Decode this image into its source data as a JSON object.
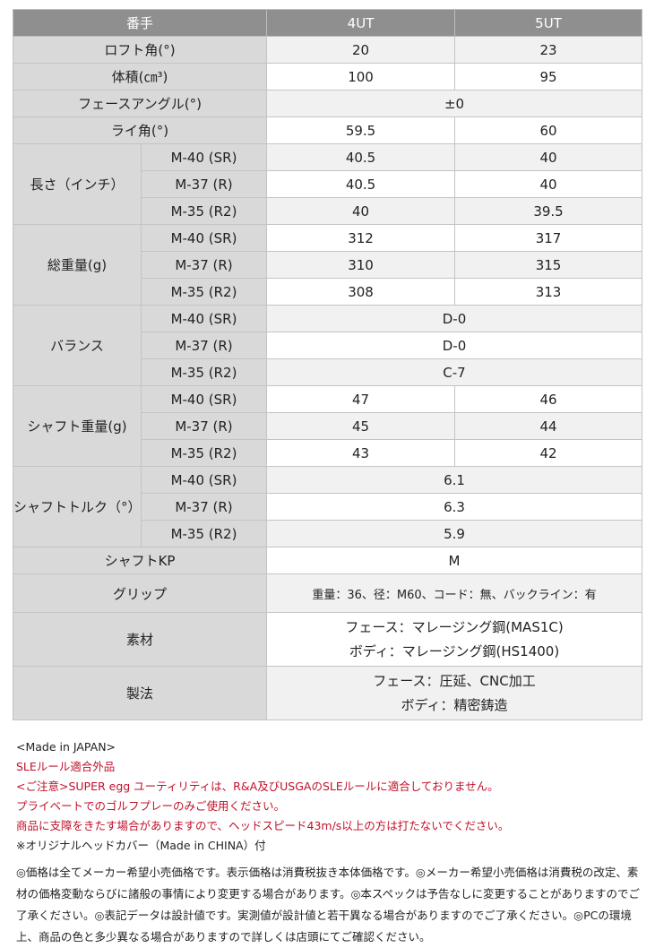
{
  "table": {
    "header": [
      "番手",
      "4UT",
      "5UT"
    ],
    "rows": [
      {
        "label": "ロフト角(°)",
        "values": [
          "20",
          "23"
        ]
      },
      {
        "label": "体積(㎝³)",
        "values": [
          "100",
          "95"
        ]
      },
      {
        "label": "フェースアングル(°)",
        "values": [
          "±0"
        ]
      },
      {
        "label": "ライ角(°)",
        "values": [
          "59.5",
          "60"
        ]
      },
      {
        "label": "長さ（インチ）",
        "sub": [
          {
            "name": "M-40 (SR)",
            "values": [
              "40.5",
              "40"
            ]
          },
          {
            "name": "M-37 (R)",
            "values": [
              "40.5",
              "40"
            ]
          },
          {
            "name": "M-35 (R2)",
            "values": [
              "40",
              "39.5"
            ]
          }
        ]
      },
      {
        "label": "総重量(g)",
        "sub": [
          {
            "name": "M-40 (SR)",
            "values": [
              "312",
              "317"
            ]
          },
          {
            "name": "M-37 (R)",
            "values": [
              "310",
              "315"
            ]
          },
          {
            "name": "M-35 (R2)",
            "values": [
              "308",
              "313"
            ]
          }
        ]
      },
      {
        "label": "バランス",
        "sub": [
          {
            "name": "M-40 (SR)",
            "values": [
              "D-0"
            ]
          },
          {
            "name": "M-37 (R)",
            "values": [
              "D-0"
            ]
          },
          {
            "name": "M-35 (R2)",
            "values": [
              "C-7"
            ]
          }
        ]
      },
      {
        "label": "シャフト重量(g)",
        "sub": [
          {
            "name": "M-40 (SR)",
            "values": [
              "47",
              "46"
            ]
          },
          {
            "name": "M-37 (R)",
            "values": [
              "45",
              "44"
            ]
          },
          {
            "name": "M-35 (R2)",
            "values": [
              "43",
              "42"
            ]
          }
        ]
      },
      {
        "label": "シャフトトルク（°）",
        "sub": [
          {
            "name": "M-40 (SR)",
            "values": [
              "6.1"
            ]
          },
          {
            "name": "M-37 (R)",
            "values": [
              "6.3"
            ]
          },
          {
            "name": "M-35 (R2)",
            "values": [
              "5.9"
            ]
          }
        ]
      },
      {
        "label": "シャフトKP",
        "values": [
          "M"
        ]
      },
      {
        "label": "グリップ",
        "values": [
          "重量：36、径：M60、コード：無、バックライン：有"
        ]
      },
      {
        "label": "素材",
        "lines": [
          "フェース：マレージング鋼(MAS1C)",
          "ボディ：マレージング鋼(HS1400)"
        ]
      },
      {
        "label": "製法",
        "lines": [
          "フェース：圧延、CNC加工",
          "ボディ：精密鋳造"
        ]
      }
    ]
  },
  "notes": [
    {
      "text": "<Made in JAPAN>",
      "color": "#222222"
    },
    {
      "text": "SLEルール適合外品",
      "color": "#c0102a"
    },
    {
      "text": "<ご注意>SUPER egg ユーティリティは、R&A及びUSGAのSLEルールに適合しておりません。",
      "color": "#c0102a"
    },
    {
      "text": "プライベートでのゴルフプレーのみご使用ください。",
      "color": "#c0102a"
    },
    {
      "text": "商品に支障をきたす場合がありますので、ヘッドスピード43m/s以上の方は打たないでください。",
      "color": "#c0102a"
    },
    {
      "text": "※オリジナルヘッドカバー（Made in CHINA）付",
      "color": "#222222"
    }
  ],
  "disclaimer": "◎価格は全てメーカー希望小売価格です。表示価格は消費税抜き本体価格です。◎メーカー希望小売価格は消費税の改定、素材の価格変動ならびに諸般の事情により変更する場合があります。◎本スペックは予告なしに変更することがありますのでご了承ください。◎表記データは設計値です。実測値が設計値と若干異なる場合がありますのでご了承ください。◎PCの環境上、商品の色と多少異なる場合がありますので詳しくは店頭にてご確認ください。"
}
